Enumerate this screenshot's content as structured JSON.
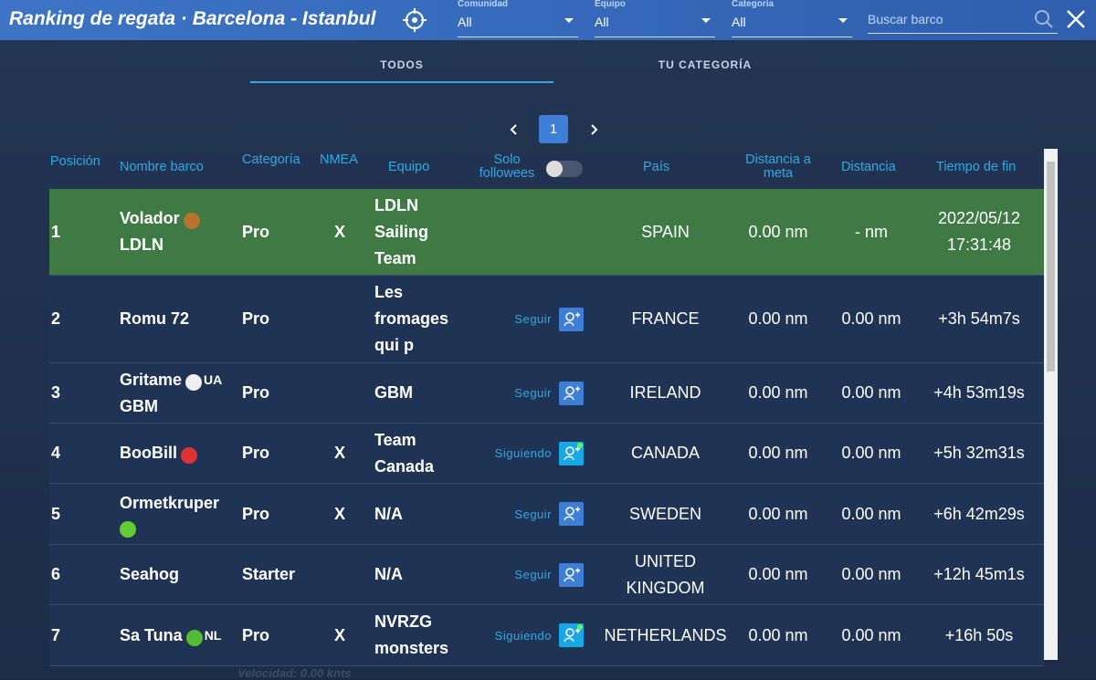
{
  "header": {
    "title": "Ranking de regata · Barcelona - Istanbul",
    "filters": [
      {
        "label": "Comunidad",
        "value": "All"
      },
      {
        "label": "Equipo",
        "value": "All"
      },
      {
        "label": "Categoría",
        "value": "All"
      }
    ],
    "search": "Buscar barco"
  },
  "tabs": [
    "TODOS",
    "TU CATEGORÍA"
  ],
  "pagination": {
    "page": 1
  },
  "table": {
    "columns": [
      "Posición",
      "Nombre barco",
      "Categoría",
      "NMEA",
      "Equipo",
      "Solo followees",
      "País",
      "Distancia a meta",
      "Distancia",
      "Tiempo de fin"
    ],
    "rows": [
      {
        "position": 1,
        "name": "Volador",
        "line2": "LDLN",
        "category": "Pro",
        "nmea": "X",
        "team": "LDLN Sailing Team",
        "country": "SPAIN",
        "dist_goal": "0.00 nm",
        "dist": "- nm",
        "finish": "2022/05/12 17:31:48"
      },
      {
        "position": 2,
        "name": "Romu 72",
        "category": "Pro",
        "team": "Les fromages qui p",
        "follow": "Seguir",
        "country": "FRANCE",
        "dist_goal": "0.00 nm",
        "dist": "0.00 nm",
        "finish": "+3h 54m7s"
      },
      {
        "position": 3,
        "name": "Gritame",
        "badge": "UA",
        "line2": "GBM",
        "category": "Pro",
        "team": "GBM",
        "follow": "Seguir",
        "country": "IRELAND",
        "dist_goal": "0.00 nm",
        "dist": "0.00 nm",
        "finish": "+4h 53m19s"
      },
      {
        "position": 4,
        "name": "BooBill",
        "category": "Pro",
        "nmea": "X",
        "team": "Team Canada",
        "follow": "Siguiendo",
        "country": "CANADA",
        "dist_goal": "0.00 nm",
        "dist": "0.00 nm",
        "finish": "+5h 32m31s"
      },
      {
        "position": 5,
        "name": "Ormetkruper",
        "category": "Pro",
        "nmea": "X",
        "team": "N/A",
        "follow": "Seguir",
        "country": "SWEDEN",
        "dist_goal": "0.00 nm",
        "dist": "0.00 nm",
        "finish": "+6h 42m29s"
      },
      {
        "position": 6,
        "name": "Seahog",
        "category": "Starter",
        "team": "N/A",
        "follow": "Seguir",
        "country": "UNITED KINGDOM",
        "dist_goal": "0.00 nm",
        "dist": "0.00 nm",
        "finish": "+12h 45m1s"
      },
      {
        "position": 7,
        "name": "Sa Tuna",
        "badge": "NL",
        "category": "Pro",
        "nmea": "X",
        "team": "NVRZG monsters",
        "follow": "Siguiendo",
        "country": "NETHERLANDS",
        "dist_goal": "0.00 nm",
        "dist": "0.00 nm",
        "finish": "+16h 50s"
      }
    ]
  },
  "footer": {
    "speed": "Velocidad: 0.00 knts"
  }
}
